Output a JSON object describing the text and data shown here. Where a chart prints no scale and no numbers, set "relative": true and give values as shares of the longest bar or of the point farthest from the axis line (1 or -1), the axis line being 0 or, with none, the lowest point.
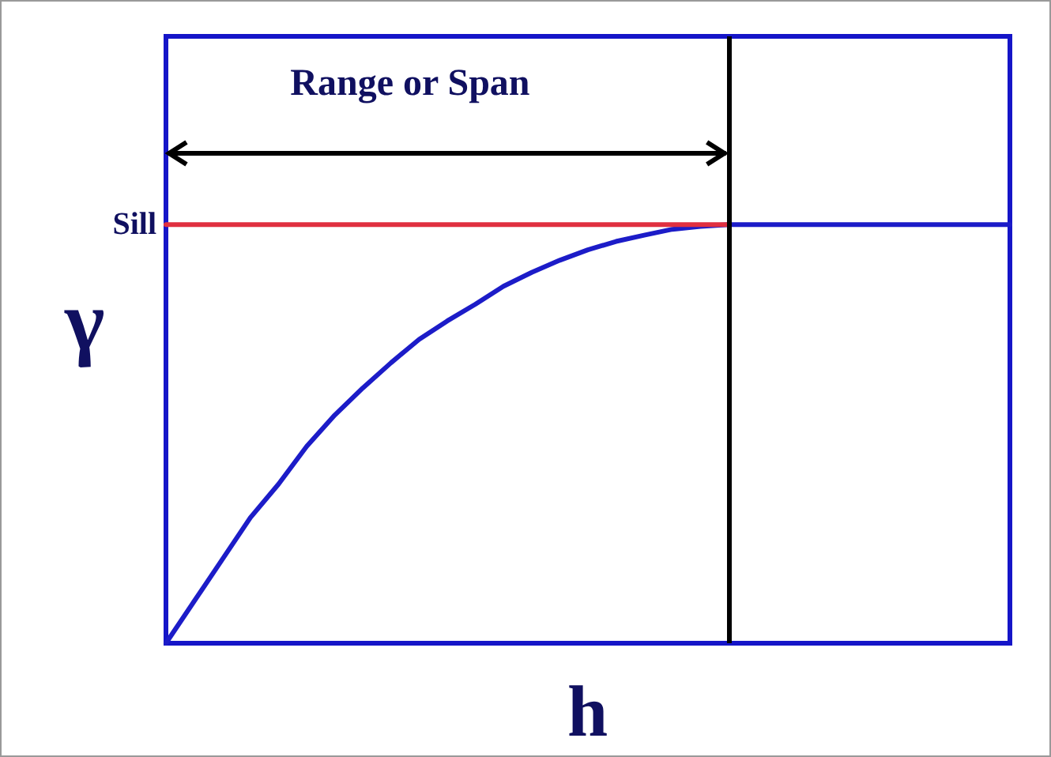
{
  "chart_data": {
    "type": "line",
    "relative": true,
    "xlabel": "h",
    "ylabel": "γ",
    "annotations": [
      "Range or Span"
    ],
    "categories": [
      null,
      null,
      null,
      null,
      null,
      null,
      null,
      null,
      null,
      null,
      null,
      null,
      null,
      null,
      null,
      null,
      null,
      null,
      null,
      null,
      null,
      null,
      null,
      null,
      null,
      null,
      null,
      null,
      null,
      null,
      null
    ],
    "grid": false,
    "legend": false,
    "marker": "none",
    "line_style": "solid",
    "series": [
      {
        "color": "#1c1cc8",
        "values": [
          0,
          0.1,
          0.2,
          0.3,
          0.38,
          0.47,
          0.545,
          0.61,
          0.67,
          0.726,
          0.77,
          0.81,
          0.853,
          0.886,
          0.915,
          0.94,
          0.96,
          0.975,
          0.989,
          0.996,
          1,
          1,
          1,
          1,
          1,
          1,
          1,
          1,
          1,
          1,
          1
        ]
      },
      {
        "name": "Sill",
        "color": "#e03040",
        "values": [
          1,
          1,
          1,
          1,
          1,
          1,
          1,
          1,
          1,
          1,
          1,
          1,
          1,
          1,
          1,
          1,
          1,
          1,
          1,
          1,
          1,
          null,
          null,
          null,
          null,
          null,
          null,
          null,
          null,
          null,
          null
        ]
      }
    ]
  }
}
